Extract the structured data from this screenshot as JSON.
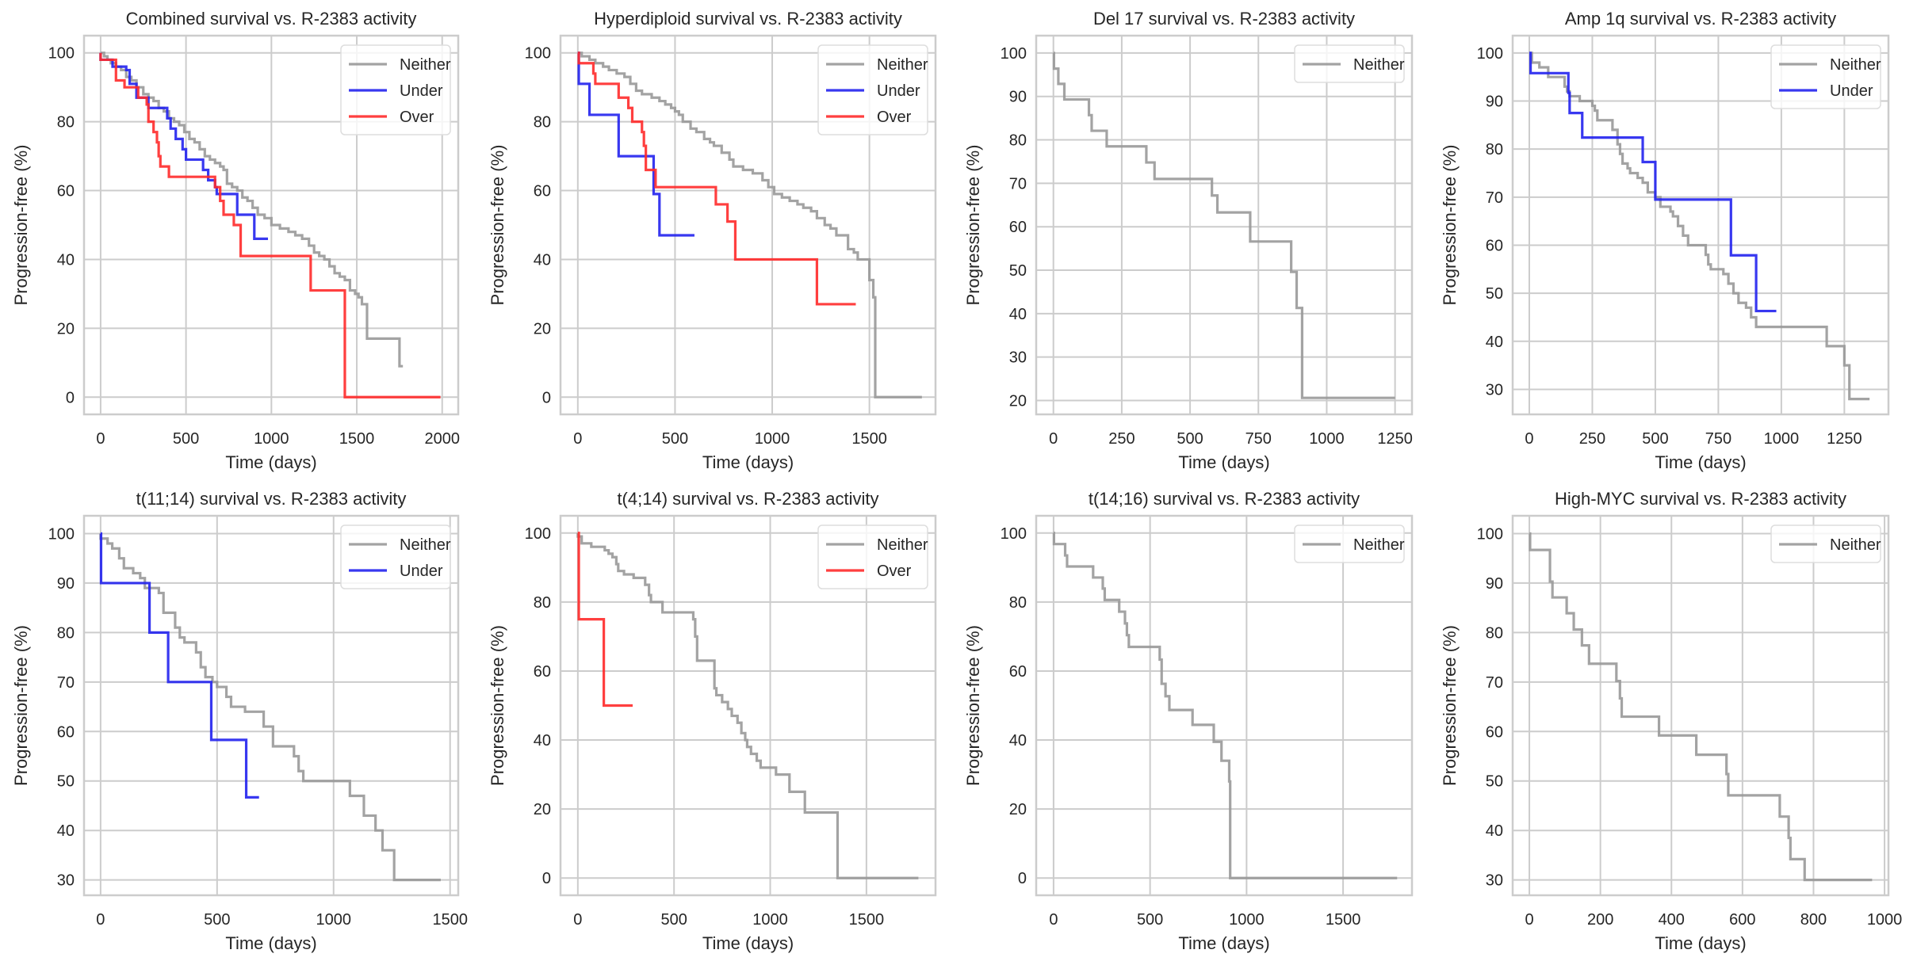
{
  "figure": {
    "layout": "2x4 grid of Kaplan-Meier step plots",
    "colors": {
      "Neither": "#999999",
      "Under": "#2222ee",
      "Over": "#ff2a2a"
    },
    "series_order": [
      "Neither",
      "Under",
      "Over"
    ]
  },
  "chart_data": [
    {
      "type": "line",
      "title": "Combined survival vs. R-2383 activity",
      "xlabel": "Time (days)",
      "ylabel": "Progression-free (%)",
      "xticks": [
        0,
        500,
        1000,
        1500,
        2000
      ],
      "yticks": [
        0,
        20,
        40,
        60,
        80,
        100
      ],
      "xlim": [
        -97,
        2094
      ],
      "ylim": [
        -5,
        105
      ],
      "grid": true,
      "legend": "top-right",
      "series": [
        {
          "name": "Neither",
          "step": true,
          "x": [
            0,
            20,
            40,
            60,
            90,
            120,
            150,
            180,
            210,
            250,
            280,
            310,
            340,
            370,
            400,
            430,
            460,
            490,
            520,
            550,
            580,
            610,
            640,
            670,
            700,
            720,
            740,
            770,
            800,
            830,
            860,
            890,
            920,
            960,
            1000,
            1050,
            1100,
            1140,
            1180,
            1220,
            1250,
            1280,
            1310,
            1340,
            1370,
            1400,
            1430,
            1460,
            1490,
            1510,
            1530,
            1560,
            1600,
            1750,
            1770
          ],
          "y": [
            100,
            99,
            98,
            97,
            96,
            95,
            93,
            92,
            90,
            88,
            87,
            86,
            84,
            83,
            81,
            80,
            79,
            77,
            75,
            74,
            72,
            70,
            69,
            68,
            67,
            66,
            62,
            61,
            60,
            58,
            57,
            55,
            53,
            52,
            50,
            49,
            48,
            47,
            46,
            44,
            42,
            41,
            40,
            38,
            36,
            35,
            34,
            31,
            30,
            29,
            27,
            17,
            17,
            9,
            9
          ]
        },
        {
          "name": "Under",
          "step": true,
          "x": [
            0,
            70,
            150,
            170,
            210,
            280,
            390,
            410,
            440,
            480,
            500,
            600,
            630,
            670,
            680,
            800,
            900,
            980
          ],
          "y": [
            98,
            96,
            95,
            91,
            87,
            84,
            81,
            78,
            75,
            72,
            69,
            66,
            63,
            61,
            59,
            53,
            46,
            46
          ]
        },
        {
          "name": "Over",
          "step": true,
          "x": [
            0,
            90,
            140,
            220,
            270,
            280,
            310,
            330,
            340,
            350,
            400,
            670,
            700,
            720,
            780,
            820,
            1230,
            1430,
            1990
          ],
          "y": [
            98,
            92,
            90,
            87,
            85,
            80,
            77,
            74,
            70,
            67,
            64,
            61,
            57,
            53,
            50,
            41,
            31,
            0,
            0
          ]
        }
      ]
    },
    {
      "type": "line",
      "title": "Hyperdiploid survival vs. R-2383 activity",
      "xlabel": "Time (days)",
      "ylabel": "Progression-free (%)",
      "xticks": [
        0,
        500,
        1000,
        1500
      ],
      "yticks": [
        0,
        20,
        40,
        60,
        80,
        100
      ],
      "xlim": [
        -89,
        1840
      ],
      "ylim": [
        -5,
        105
      ],
      "grid": true,
      "legend": "top-right",
      "series": [
        {
          "name": "Neither",
          "step": true,
          "x": [
            0,
            20,
            60,
            90,
            130,
            160,
            200,
            240,
            270,
            300,
            330,
            380,
            420,
            450,
            480,
            500,
            520,
            540,
            580,
            610,
            650,
            680,
            700,
            740,
            780,
            800,
            850,
            900,
            950,
            980,
            1010,
            1050,
            1090,
            1130,
            1160,
            1200,
            1230,
            1270,
            1300,
            1330,
            1390,
            1420,
            1440,
            1500,
            1520,
            1530,
            1770
          ],
          "y": [
            100,
            99,
            98,
            97,
            96,
            95,
            94,
            93,
            91,
            89,
            88,
            87,
            86,
            85,
            84,
            83,
            82,
            80,
            78,
            77,
            75,
            74,
            73,
            71,
            69,
            67,
            66,
            65,
            63,
            61,
            59,
            58,
            57,
            56,
            55,
            54,
            52,
            50,
            49,
            47,
            43,
            42,
            40,
            34,
            29,
            0,
            0
          ]
        },
        {
          "name": "Under",
          "step": true,
          "x": [
            0,
            5,
            60,
            210,
            390,
            420,
            600
          ],
          "y": [
            100,
            91,
            82,
            70,
            59,
            47,
            47
          ]
        },
        {
          "name": "Over",
          "step": true,
          "x": [
            0,
            5,
            80,
            90,
            210,
            260,
            280,
            330,
            340,
            350,
            400,
            710,
            770,
            810,
            1230,
            1430
          ],
          "y": [
            100,
            97,
            94,
            91,
            87,
            84,
            80,
            77,
            73,
            66,
            61,
            56,
            51,
            40,
            27,
            27
          ]
        }
      ]
    },
    {
      "type": "line",
      "title": "Del 17 survival vs. R-2383 activity",
      "xlabel": "Time (days)",
      "ylabel": "Progression-free (%)",
      "xticks": [
        0,
        250,
        500,
        750,
        1000,
        1250
      ],
      "yticks": [
        20,
        30,
        40,
        50,
        60,
        70,
        80,
        90,
        100
      ],
      "xlim": [
        -63,
        1312
      ],
      "ylim": [
        16.8,
        104
      ],
      "grid": true,
      "legend": "top-right",
      "series": [
        {
          "name": "Neither",
          "step": true,
          "x": [
            0,
            2,
            18,
            40,
            130,
            140,
            195,
            340,
            370,
            580,
            600,
            720,
            870,
            890,
            910,
            1250
          ],
          "y": [
            100,
            96.4,
            92.9,
            89.3,
            85.7,
            82.1,
            78.5,
            74.8,
            71.0,
            67.2,
            63.3,
            56.6,
            49.6,
            41.3,
            20.6,
            20.6
          ]
        }
      ]
    },
    {
      "type": "line",
      "title": "Amp 1q survival vs. R-2383 activity",
      "xlabel": "Time (days)",
      "ylabel": "Progression-free (%)",
      "xticks": [
        0,
        250,
        500,
        750,
        1000,
        1250
      ],
      "yticks": [
        30,
        40,
        50,
        60,
        70,
        80,
        90,
        100
      ],
      "xlim": [
        -66,
        1425
      ],
      "ylim": [
        24.8,
        103.6
      ],
      "grid": true,
      "legend": "top-right",
      "series": [
        {
          "name": "Neither",
          "step": true,
          "x": [
            0,
            10,
            40,
            75,
            140,
            150,
            160,
            200,
            250,
            260,
            270,
            280,
            330,
            350,
            360,
            370,
            390,
            400,
            430,
            450,
            470,
            500,
            520,
            560,
            570,
            590,
            610,
            630,
            640,
            650,
            700,
            710,
            720,
            770,
            790,
            810,
            830,
            860,
            880,
            900,
            1180,
            1250,
            1270,
            1350
          ],
          "y": [
            100,
            98,
            97,
            95,
            93,
            92,
            91,
            90,
            89,
            88,
            86,
            86,
            84,
            81,
            79,
            77,
            76,
            75,
            74,
            73,
            71,
            70,
            68,
            67,
            66,
            64,
            62,
            60,
            60,
            60,
            58,
            56,
            55,
            54,
            52,
            50,
            48,
            47,
            45,
            43,
            39,
            35,
            28,
            28
          ]
        },
        {
          "name": "Under",
          "step": true,
          "x": [
            0,
            5,
            155,
            160,
            210,
            450,
            500,
            800,
            900,
            980
          ],
          "y": [
            100,
            95.8,
            91.7,
            87.5,
            82.4,
            77.3,
            69.5,
            57.9,
            46.3,
            46.3
          ]
        }
      ]
    },
    {
      "type": "line",
      "title": "t(11;14) survival vs. R-2383 activity",
      "xlabel": "Time (days)",
      "ylabel": "Progression-free (%)",
      "xticks": [
        0,
        500,
        1000,
        1500
      ],
      "yticks": [
        30,
        40,
        50,
        60,
        70,
        80,
        90,
        100
      ],
      "xlim": [
        -71,
        1535
      ],
      "ylim": [
        26.9,
        103.6
      ],
      "grid": true,
      "legend": "top-right",
      "series": [
        {
          "name": "Neither",
          "step": true,
          "x": [
            0,
            30,
            50,
            80,
            100,
            140,
            170,
            190,
            250,
            270,
            320,
            340,
            360,
            410,
            430,
            450,
            480,
            500,
            540,
            560,
            620,
            700,
            740,
            830,
            850,
            870,
            1070,
            1130,
            1180,
            1210,
            1260,
            1460
          ],
          "y": [
            99,
            98,
            97,
            95,
            93,
            92,
            91,
            89,
            88,
            84,
            81,
            79,
            78,
            76,
            73,
            71,
            70,
            69,
            67,
            65,
            64,
            61,
            57,
            55,
            52,
            50,
            47,
            43,
            40,
            36,
            30,
            30
          ]
        },
        {
          "name": "Under",
          "step": true,
          "x": [
            0,
            2,
            210,
            290,
            475,
            625,
            680
          ],
          "y": [
            100,
            90,
            80,
            70,
            58.3,
            46.7,
            46.7
          ]
        }
      ]
    },
    {
      "type": "line",
      "title": "t(4;14) survival vs. R-2383 activity",
      "xlabel": "Time (days)",
      "ylabel": "Progression-free (%)",
      "xticks": [
        0,
        500,
        1000,
        1500
      ],
      "yticks": [
        0,
        20,
        40,
        60,
        80,
        100
      ],
      "xlim": [
        -90,
        1859
      ],
      "ylim": [
        -5,
        105
      ],
      "grid": true,
      "legend": "top-right",
      "series": [
        {
          "name": "Neither",
          "step": true,
          "x": [
            0,
            20,
            70,
            140,
            160,
            180,
            200,
            210,
            240,
            290,
            350,
            370,
            380,
            440,
            600,
            610,
            620,
            640,
            710,
            720,
            750,
            780,
            800,
            830,
            850,
            870,
            880,
            900,
            930,
            950,
            1030,
            1100,
            1180,
            1350,
            1770
          ],
          "y": [
            99,
            97,
            96,
            95,
            94,
            93,
            91,
            89,
            88,
            87,
            85,
            82,
            80,
            77,
            75,
            70,
            63,
            63,
            55,
            53,
            51,
            49,
            47,
            45,
            42,
            40,
            38,
            36,
            34,
            32,
            30,
            25,
            19,
            0,
            0
          ]
        },
        {
          "name": "Over",
          "step": true,
          "x": [
            0,
            5,
            135,
            285
          ],
          "y": [
            100,
            75,
            50,
            50
          ]
        }
      ]
    },
    {
      "type": "line",
      "title": "t(14;16) survival vs. R-2383 activity",
      "xlabel": "Time (days)",
      "ylabel": "Progression-free (%)",
      "xticks": [
        0,
        500,
        1000,
        1500
      ],
      "yticks": [
        0,
        20,
        40,
        60,
        80,
        100
      ],
      "xlim": [
        -90,
        1857
      ],
      "ylim": [
        -5,
        105
      ],
      "grid": true,
      "legend": "top-right",
      "series": [
        {
          "name": "Neither",
          "step": true,
          "x": [
            0,
            2,
            60,
            70,
            205,
            255,
            265,
            340,
            370,
            380,
            390,
            550,
            560,
            580,
            600,
            720,
            830,
            870,
            910,
            915,
            1780
          ],
          "y": [
            100,
            96.8,
            93.5,
            90.3,
            87.1,
            83.9,
            80.6,
            77.2,
            73.8,
            70.4,
            67.0,
            63.3,
            56.3,
            52.7,
            48.7,
            44.4,
            39.5,
            34.0,
            28.0,
            0,
            0
          ]
        }
      ]
    },
    {
      "type": "line",
      "title": "High-MYC survival vs. R-2383 activity",
      "xlabel": "Time (days)",
      "ylabel": "Progression-free (%)",
      "xticks": [
        0,
        200,
        400,
        600,
        800,
        1000
      ],
      "yticks": [
        30,
        40,
        50,
        60,
        70,
        80,
        90,
        100
      ],
      "xlim": [
        -47,
        1011
      ],
      "ylim": [
        26.9,
        103.6
      ],
      "grid": true,
      "legend": "top-right",
      "series": [
        {
          "name": "Neither",
          "step": true,
          "x": [
            0,
            2,
            58,
            65,
            105,
            125,
            148,
            168,
            245,
            255,
            260,
            365,
            470,
            555,
            560,
            705,
            730,
            735,
            775,
            965
          ],
          "y": [
            100,
            96.7,
            90.3,
            87.1,
            83.9,
            80.6,
            77.4,
            73.7,
            70.2,
            66.7,
            63.0,
            59.2,
            55.3,
            51.4,
            47.1,
            42.8,
            38.5,
            34.2,
            30.0,
            30.0
          ]
        }
      ]
    }
  ]
}
